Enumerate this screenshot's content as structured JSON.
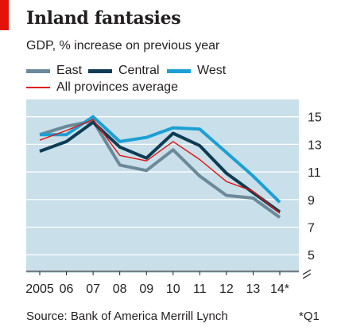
{
  "header": {
    "title": "Inland fantasies",
    "subtitle": "GDP, % increase on previous year"
  },
  "legend": {
    "east": "East",
    "central": "Central",
    "west": "West",
    "average": "All provinces average"
  },
  "footer": {
    "source": "Source: Bank of America Merrill Lynch",
    "note": "*Q1"
  },
  "colors": {
    "east": "#6b8a99",
    "central": "#0d3c54",
    "west": "#1ca0d4",
    "average": "#e3120b",
    "plot_background": "#c9dfe9",
    "brand_red": "#e3120b"
  },
  "chart_data": {
    "type": "line",
    "title": "Inland fantasies",
    "subtitle": "GDP, % increase on previous year",
    "categories": [
      "2005",
      "06",
      "07",
      "08",
      "09",
      "10",
      "11",
      "12",
      "13",
      "14*"
    ],
    "y_ticks": [
      "5",
      "7",
      "9",
      "11",
      "13",
      "15"
    ],
    "ylim": [
      3.8,
      15.5
    ],
    "y_axis_side": "right",
    "y_axis_break": true,
    "grid": "horizontal",
    "legend_position": "top-left",
    "series": [
      {
        "name": "East",
        "key": "east",
        "values": [
          13.7,
          14.3,
          14.7,
          11.5,
          11.1,
          12.6,
          10.7,
          9.3,
          9.1,
          7.7
        ]
      },
      {
        "name": "Central",
        "key": "central",
        "values": [
          12.5,
          13.2,
          14.6,
          12.8,
          12.0,
          13.8,
          12.9,
          10.9,
          9.5,
          8.1
        ]
      },
      {
        "name": "West",
        "key": "west",
        "values": [
          13.7,
          13.7,
          15.0,
          13.2,
          13.5,
          14.2,
          14.1,
          12.4,
          10.7,
          8.8
        ]
      },
      {
        "name": "All provinces average",
        "key": "average",
        "values": [
          13.3,
          14.0,
          14.8,
          12.2,
          11.8,
          13.2,
          11.9,
          10.3,
          9.6,
          8.0
        ]
      }
    ]
  }
}
